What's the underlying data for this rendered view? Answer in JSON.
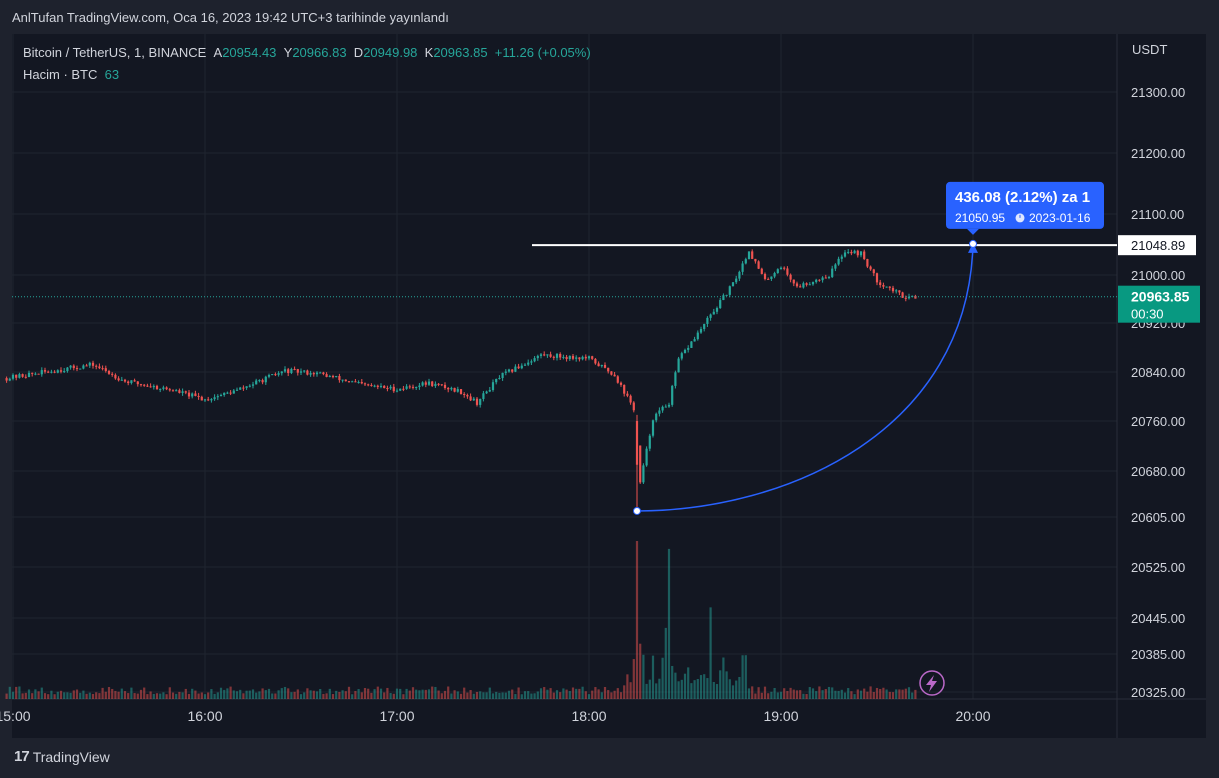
{
  "header": {
    "publisher_line": "AnlTufan TradingView.com, Oca 16, 2023 19:42 UTC+3 tarihinde yayınlandı"
  },
  "legend": {
    "symbol": "Bitcoin / TetherUS, 1, BINANCE",
    "open_label": "A",
    "open": "20954.43",
    "high_label": "Y",
    "high": "20966.83",
    "low_label": "D",
    "low": "20949.98",
    "close_label": "K",
    "close": "20963.85",
    "change": "+11.26 (+0.05%)",
    "volume_label": "Hacim · BTC",
    "volume_value": "63"
  },
  "colors": {
    "up": "#26a69a",
    "down": "#ef5350",
    "background": "#131722",
    "grid": "#1f2430",
    "measure": "#2962ff",
    "price_tag": "#089981",
    "text": "#d1d4dc"
  },
  "icons": [
    "lightning-icon",
    "tradingview-logo-icon"
  ],
  "footer": {
    "brand": "TradingView",
    "logo_text": "17"
  },
  "chart_data": [
    {
      "type": "candlestick",
      "title": "Bitcoin / TetherUS, 1, BINANCE",
      "currency": "USDT",
      "x_ticks": [
        "15:00",
        "16:00",
        "17:00",
        "18:00",
        "19:00",
        "20:00"
      ],
      "y_ticks": [
        "20325.00",
        "20385.00",
        "20445.00",
        "20525.00",
        "20605.00",
        "20680.00",
        "20760.00",
        "20840.00",
        "20920.00",
        "21000.00",
        "21100.00",
        "21200.00",
        "21300.00"
      ],
      "ylim": [
        20315,
        21395
      ],
      "grid": true,
      "key_path": [
        [
          "14:58",
          20830
        ],
        [
          "15:10",
          20840
        ],
        [
          "15:25",
          20852
        ],
        [
          "15:35",
          20825
        ],
        [
          "15:50",
          20810
        ],
        [
          "16:00",
          20795
        ],
        [
          "16:10",
          20810
        ],
        [
          "16:25",
          20842
        ],
        [
          "16:35",
          20838
        ],
        [
          "16:50",
          20818
        ],
        [
          "17:00",
          20812
        ],
        [
          "17:10",
          20822
        ],
        [
          "17:20",
          20808
        ],
        [
          "17:25",
          20790
        ],
        [
          "17:32",
          20832
        ],
        [
          "17:45",
          20868
        ],
        [
          "18:00",
          20862
        ],
        [
          "18:08",
          20835
        ],
        [
          "18:14",
          20780
        ],
        [
          "18:16",
          20660
        ],
        [
          "18:20",
          20765
        ],
        [
          "18:25",
          20790
        ],
        [
          "18:28",
          20860
        ],
        [
          "18:35",
          20910
        ],
        [
          "18:45",
          20985
        ],
        [
          "18:50",
          21040
        ],
        [
          "18:55",
          20990
        ],
        [
          "19:00",
          21015
        ],
        [
          "19:05",
          20980
        ],
        [
          "19:15",
          21000
        ],
        [
          "19:20",
          21040
        ],
        [
          "19:25",
          21035
        ],
        [
          "19:30",
          20990
        ],
        [
          "19:38",
          20965
        ],
        [
          "19:42",
          20964
        ]
      ],
      "current_price": {
        "value": "20963.85",
        "countdown": "00:30"
      },
      "horizontal_line": {
        "value": "21048.89"
      },
      "measure": {
        "from": {
          "time": "18:15",
          "price": 20614.87
        },
        "to": {
          "time": "20:00",
          "price": 21050.95
        },
        "label_main": "436.08 (2.12%) za 1",
        "label_price": "21050.95",
        "label_date": "2023-01-16"
      },
      "volume": {
        "unit": "BTC",
        "last": 63
      }
    }
  ]
}
